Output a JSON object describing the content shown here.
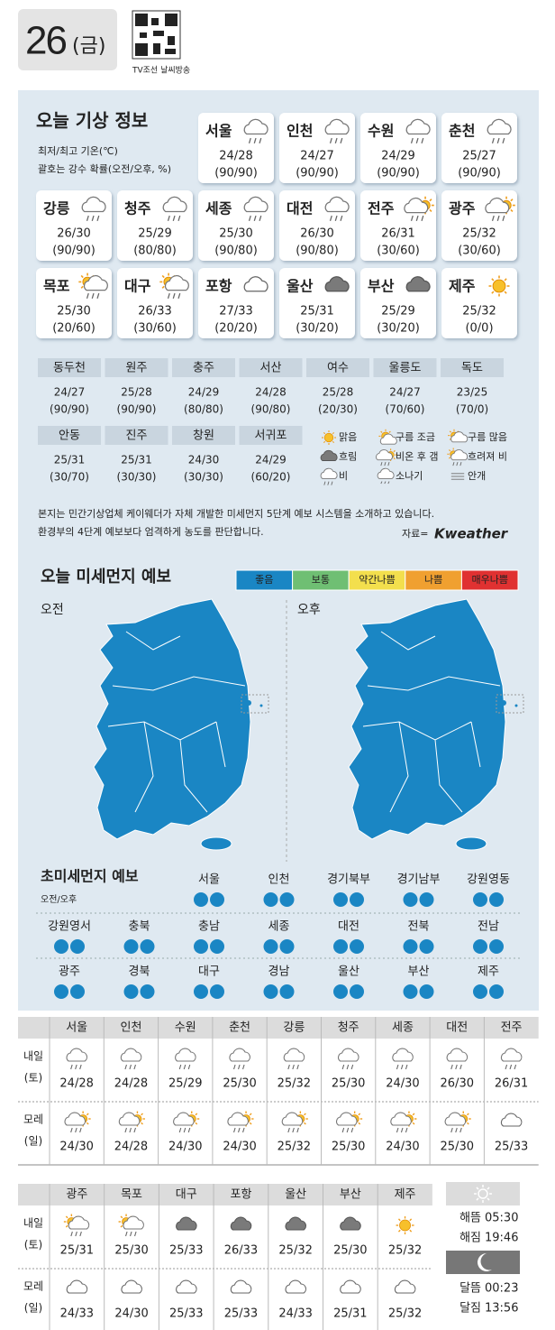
{
  "header": {
    "day": "26",
    "weekday": "(금)",
    "qr_caption": "TV조선 날씨방송"
  },
  "weather": {
    "title": "오늘 기상 정보",
    "notes": [
      "최저/최고 기온(℃)",
      "괄호는 강수 확률(오전/오후, %)"
    ],
    "cards": [
      {
        "name": "서울",
        "temp": "24/28",
        "prob": "(90/90)",
        "icon": "rain"
      },
      {
        "name": "인천",
        "temp": "24/27",
        "prob": "(90/90)",
        "icon": "rain"
      },
      {
        "name": "수원",
        "temp": "24/29",
        "prob": "(90/90)",
        "icon": "rain"
      },
      {
        "name": "춘천",
        "temp": "25/27",
        "prob": "(90/90)",
        "icon": "rain"
      },
      {
        "name": "강릉",
        "temp": "26/30",
        "prob": "(90/90)",
        "icon": "rain"
      },
      {
        "name": "청주",
        "temp": "25/29",
        "prob": "(80/80)",
        "icon": "rain"
      },
      {
        "name": "세종",
        "temp": "25/30",
        "prob": "(90/80)",
        "icon": "rain"
      },
      {
        "name": "대전",
        "temp": "26/30",
        "prob": "(90/80)",
        "icon": "rain"
      },
      {
        "name": "전주",
        "temp": "26/31",
        "prob": "(30/60)",
        "icon": "clearing"
      },
      {
        "name": "광주",
        "temp": "25/32",
        "prob": "(30/60)",
        "icon": "clearing"
      },
      {
        "name": "목포",
        "temp": "25/30",
        "prob": "(20/60)",
        "icon": "rain-later"
      },
      {
        "name": "대구",
        "temp": "26/33",
        "prob": "(30/60)",
        "icon": "rain-later"
      },
      {
        "name": "포항",
        "temp": "27/33",
        "prob": "(20/20)",
        "icon": "cloud"
      },
      {
        "name": "울산",
        "temp": "25/31",
        "prob": "(30/20)",
        "icon": "overcast"
      },
      {
        "name": "부산",
        "temp": "25/29",
        "prob": "(30/20)",
        "icon": "overcast"
      },
      {
        "name": "제주",
        "temp": "25/32",
        "prob": "(0/0)",
        "icon": "sun"
      }
    ],
    "cities": [
      {
        "name": "동두천",
        "temp": "24/27",
        "prob": "(90/90)"
      },
      {
        "name": "원주",
        "temp": "25/28",
        "prob": "(90/90)"
      },
      {
        "name": "충주",
        "temp": "24/29",
        "prob": "(80/80)"
      },
      {
        "name": "서산",
        "temp": "24/28",
        "prob": "(90/80)"
      },
      {
        "name": "여수",
        "temp": "25/28",
        "prob": "(20/30)"
      },
      {
        "name": "울릉도",
        "temp": "24/27",
        "prob": "(70/60)"
      },
      {
        "name": "독도",
        "temp": "23/25",
        "prob": "(70/0)"
      },
      {
        "name": "안동",
        "temp": "25/31",
        "prob": "(30/70)"
      },
      {
        "name": "진주",
        "temp": "25/31",
        "prob": "(30/30)"
      },
      {
        "name": "창원",
        "temp": "24/30",
        "prob": "(30/30)"
      },
      {
        "name": "서귀포",
        "temp": "24/29",
        "prob": "(60/20)"
      }
    ],
    "legend": [
      {
        "label": "맑음",
        "icon": "sun"
      },
      {
        "label": "구름 조금",
        "icon": "partly"
      },
      {
        "label": "구름 많음",
        "icon": "mostly"
      },
      {
        "label": "흐림",
        "icon": "overcast"
      },
      {
        "label": "비온 후 갬",
        "icon": "clearing"
      },
      {
        "label": "흐려져 비",
        "icon": "rain-later"
      },
      {
        "label": "비",
        "icon": "rain"
      },
      {
        "label": "소나기",
        "icon": "shower"
      },
      {
        "label": "안개",
        "icon": "fog"
      }
    ],
    "footnotes": [
      "본지는 민간기상업체 케이웨더가 자체 개발한 미세먼지 5단계 예보 시스템을 소개하고 있습니다.",
      "환경부의 4단계 예보보다 엄격하게 농도를 판단합니다."
    ],
    "source": "자료=",
    "source_logo": "Kweather"
  },
  "dust": {
    "title": "오늘 미세먼지 예보",
    "levels": [
      {
        "label": "좋음",
        "color": "#1a86c4"
      },
      {
        "label": "보통",
        "color": "#6fbf73"
      },
      {
        "label": "약간나쁨",
        "color": "#f3df4d"
      },
      {
        "label": "나쁨",
        "color": "#f0a030"
      },
      {
        "label": "매우나쁨",
        "color": "#e03131"
      }
    ],
    "maps": [
      {
        "label": "오전",
        "color": "#1a86c4"
      },
      {
        "label": "오후",
        "color": "#1a86c4"
      }
    ],
    "ultra": {
      "title": "초미세먼지 예보",
      "subtitle": "오전/오후",
      "regions": [
        {
          "name": "서울",
          "colors": [
            "#1a86c4",
            "#1a86c4"
          ]
        },
        {
          "name": "인천",
          "colors": [
            "#1a86c4",
            "#1a86c4"
          ]
        },
        {
          "name": "경기북부",
          "colors": [
            "#1a86c4",
            "#1a86c4"
          ]
        },
        {
          "name": "경기남부",
          "colors": [
            "#1a86c4",
            "#1a86c4"
          ]
        },
        {
          "name": "강원영동",
          "colors": [
            "#1a86c4",
            "#1a86c4"
          ]
        },
        {
          "name": "강원영서",
          "colors": [
            "#1a86c4",
            "#1a86c4"
          ]
        },
        {
          "name": "충북",
          "colors": [
            "#1a86c4",
            "#1a86c4"
          ]
        },
        {
          "name": "충남",
          "colors": [
            "#1a86c4",
            "#1a86c4"
          ]
        },
        {
          "name": "세종",
          "colors": [
            "#1a86c4",
            "#1a86c4"
          ]
        },
        {
          "name": "대전",
          "colors": [
            "#1a86c4",
            "#1a86c4"
          ]
        },
        {
          "name": "전북",
          "colors": [
            "#1a86c4",
            "#1a86c4"
          ]
        },
        {
          "name": "전남",
          "colors": [
            "#1a86c4",
            "#1a86c4"
          ]
        },
        {
          "name": "광주",
          "colors": [
            "#1a86c4",
            "#1a86c4"
          ]
        },
        {
          "name": "경북",
          "colors": [
            "#1a86c4",
            "#1a86c4"
          ]
        },
        {
          "name": "대구",
          "colors": [
            "#1a86c4",
            "#1a86c4"
          ]
        },
        {
          "name": "경남",
          "colors": [
            "#1a86c4",
            "#1a86c4"
          ]
        },
        {
          "name": "울산",
          "colors": [
            "#1a86c4",
            "#1a86c4"
          ]
        },
        {
          "name": "부산",
          "colors": [
            "#1a86c4",
            "#1a86c4"
          ]
        },
        {
          "name": "제주",
          "colors": [
            "#1a86c4",
            "#1a86c4"
          ]
        }
      ]
    }
  },
  "forecast": {
    "tables": [
      {
        "columns": [
          "서울",
          "인천",
          "수원",
          "춘천",
          "강릉",
          "청주",
          "세종",
          "대전",
          "전주"
        ],
        "rows": [
          {
            "label": [
              "내일",
              "(토)"
            ],
            "cells": [
              {
                "icon": "rain",
                "temp": "24/28"
              },
              {
                "icon": "rain",
                "temp": "24/28"
              },
              {
                "icon": "rain",
                "temp": "25/29"
              },
              {
                "icon": "rain",
                "temp": "25/30"
              },
              {
                "icon": "rain",
                "temp": "25/32"
              },
              {
                "icon": "rain",
                "temp": "25/30"
              },
              {
                "icon": "rain",
                "temp": "24/30"
              },
              {
                "icon": "rain",
                "temp": "26/30"
              },
              {
                "icon": "rain",
                "temp": "26/31"
              }
            ]
          },
          {
            "label": [
              "모레",
              "(일)"
            ],
            "cells": [
              {
                "icon": "clearing",
                "temp": "24/30"
              },
              {
                "icon": "clearing",
                "temp": "24/28"
              },
              {
                "icon": "clearing",
                "temp": "24/30"
              },
              {
                "icon": "clearing",
                "temp": "24/30"
              },
              {
                "icon": "clearing",
                "temp": "25/32"
              },
              {
                "icon": "clearing",
                "temp": "25/30"
              },
              {
                "icon": "clearing",
                "temp": "24/30"
              },
              {
                "icon": "clearing",
                "temp": "25/30"
              },
              {
                "icon": "cloud",
                "temp": "25/33"
              }
            ]
          }
        ]
      },
      {
        "columns": [
          "광주",
          "목포",
          "대구",
          "포항",
          "울산",
          "부산",
          "제주"
        ],
        "rows": [
          {
            "label": [
              "내일",
              "(토)"
            ],
            "cells": [
              {
                "icon": "rain-later",
                "temp": "25/31"
              },
              {
                "icon": "rain-later",
                "temp": "25/30"
              },
              {
                "icon": "overcast",
                "temp": "25/33"
              },
              {
                "icon": "overcast",
                "temp": "26/33"
              },
              {
                "icon": "overcast",
                "temp": "25/32"
              },
              {
                "icon": "overcast",
                "temp": "25/30"
              },
              {
                "icon": "sun",
                "temp": "25/32"
              }
            ]
          },
          {
            "label": [
              "모레",
              "(일)"
            ],
            "cells": [
              {
                "icon": "cloud",
                "temp": "24/33"
              },
              {
                "icon": "cloud",
                "temp": "24/30"
              },
              {
                "icon": "cloud",
                "temp": "25/33"
              },
              {
                "icon": "cloud",
                "temp": "25/33"
              },
              {
                "icon": "cloud",
                "temp": "24/33"
              },
              {
                "icon": "cloud",
                "temp": "25/31"
              },
              {
                "icon": "cloud",
                "temp": "25/32"
              }
            ]
          }
        ]
      }
    ],
    "astro": [
      {
        "label": "해뜸",
        "time": "05:30"
      },
      {
        "label": "해짐",
        "time": "19:46"
      },
      {
        "label": "달뜸",
        "time": "00:23"
      },
      {
        "label": "달짐",
        "time": "13:56"
      }
    ]
  }
}
